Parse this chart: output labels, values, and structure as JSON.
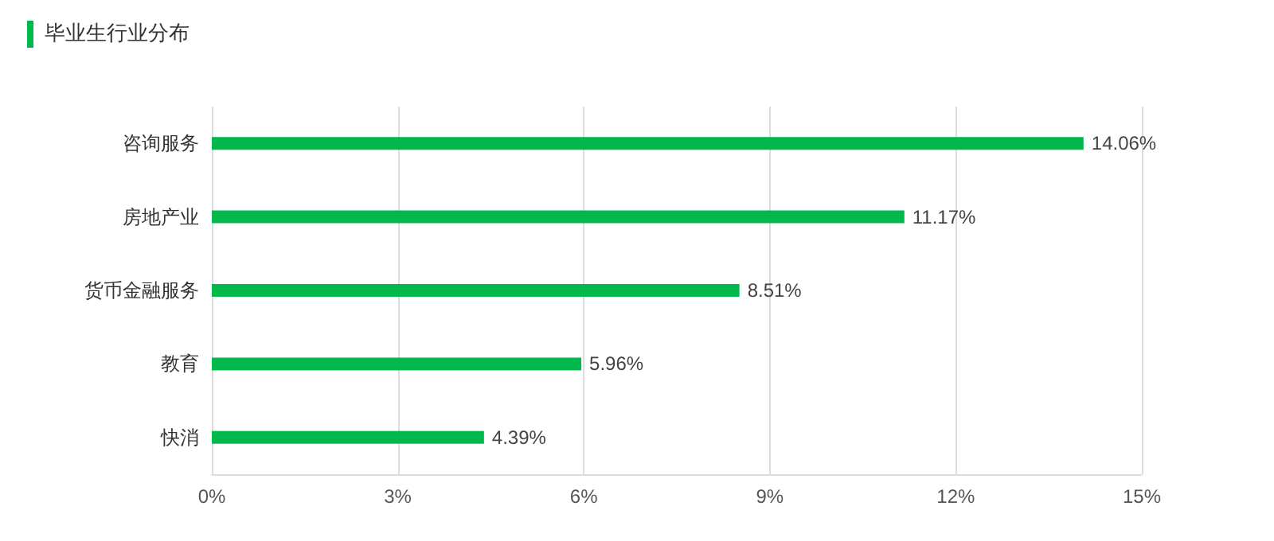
{
  "chart_data": {
    "type": "bar",
    "orientation": "horizontal",
    "title": "毕业生行业分布",
    "categories": [
      "咨询服务",
      "房地产业",
      "货币金融服务",
      "教育",
      "快消"
    ],
    "values": [
      14.06,
      11.17,
      8.51,
      5.96,
      4.39
    ],
    "value_labels": [
      "14.06%",
      "11.17%",
      "8.51%",
      "5.96%",
      "4.39%"
    ],
    "color": "#00b84c",
    "xlim": [
      0,
      15
    ],
    "xticks": [
      {
        "value": 0,
        "label": "0%"
      },
      {
        "value": 3,
        "label": "3%"
      },
      {
        "value": 6,
        "label": "6%"
      },
      {
        "value": 9,
        "label": "9%"
      },
      {
        "value": 12,
        "label": "12%"
      },
      {
        "value": 15,
        "label": "15%"
      }
    ],
    "grid": "x"
  }
}
